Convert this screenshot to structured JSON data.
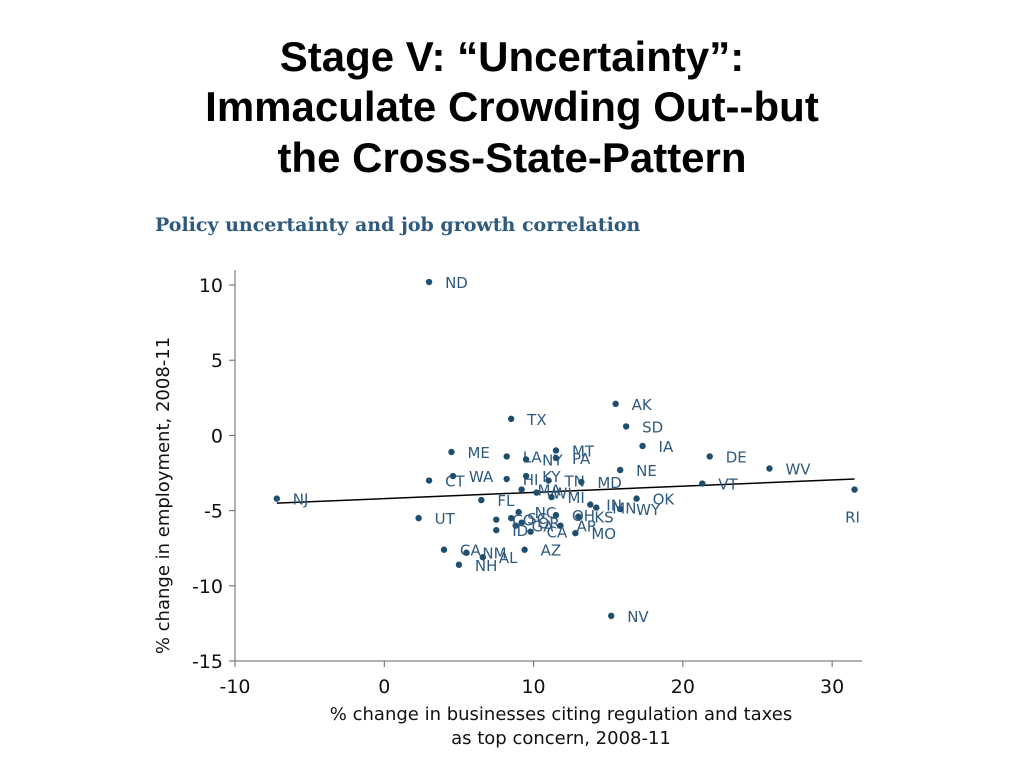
{
  "slide": {
    "title_lines": [
      "Stage V: “Uncertainty”:",
      "Immaculate Crowding Out--but",
      "the Cross-State-Pattern"
    ]
  },
  "chart_data": {
    "type": "scatter",
    "title": "Policy uncertainty and job growth correlation",
    "xlabel_lines": [
      "% change in businesses citing regulation and taxes",
      "as top concern, 2008-11"
    ],
    "ylabel": "% change in employment, 2008-11",
    "xlim": [
      -10,
      32
    ],
    "ylim": [
      -15,
      11
    ],
    "xticks": [
      -10,
      0,
      10,
      20,
      30
    ],
    "yticks": [
      10,
      5,
      0,
      -5,
      -10,
      -15
    ],
    "grid": false,
    "colors": {
      "point": "#1f4e6e",
      "label": "#2e5a80",
      "axis": "#666666",
      "trend": "#000000"
    },
    "trendline": {
      "x": [
        -7.2,
        31.5
      ],
      "y": [
        -4.5,
        -2.9
      ]
    },
    "points": [
      {
        "label": "ND",
        "x": 3.0,
        "y": 10.2
      },
      {
        "label": "AK",
        "x": 15.5,
        "y": 2.1
      },
      {
        "label": "TX",
        "x": 8.5,
        "y": 1.1
      },
      {
        "label": "SD",
        "x": 16.2,
        "y": 0.6
      },
      {
        "label": "IA",
        "x": 17.3,
        "y": -0.7
      },
      {
        "label": "DE",
        "x": 21.8,
        "y": -1.4
      },
      {
        "label": "WV",
        "x": 25.8,
        "y": -2.2
      },
      {
        "label": "VT",
        "x": 21.3,
        "y": -3.2
      },
      {
        "label": "RI",
        "x": 31.5,
        "y": -3.6
      },
      {
        "label": "NJ",
        "x": -7.2,
        "y": -4.2
      },
      {
        "label": "ME",
        "x": 4.5,
        "y": -1.1
      },
      {
        "label": "LA",
        "x": 8.2,
        "y": -1.4
      },
      {
        "label": "NY",
        "x": 9.5,
        "y": -1.6
      },
      {
        "label": "MT",
        "x": 11.5,
        "y": -1.0
      },
      {
        "label": "PA",
        "x": 11.5,
        "y": -1.5
      },
      {
        "label": "NE",
        "x": 15.8,
        "y": -2.3
      },
      {
        "label": "CT",
        "x": 3.0,
        "y": -3.0
      },
      {
        "label": "WA",
        "x": 4.6,
        "y": -2.7
      },
      {
        "label": "HI",
        "x": 8.2,
        "y": -2.9
      },
      {
        "label": "KY",
        "x": 9.5,
        "y": -2.7
      },
      {
        "label": "TN",
        "x": 11.0,
        "y": -3.0
      },
      {
        "label": "MD",
        "x": 13.2,
        "y": -3.1
      },
      {
        "label": "MA",
        "x": 9.2,
        "y": -3.6
      },
      {
        "label": "WI",
        "x": 10.2,
        "y": -3.8
      },
      {
        "label": "MI",
        "x": 11.2,
        "y": -4.1
      },
      {
        "label": "FL",
        "x": 6.5,
        "y": -4.3
      },
      {
        "label": "OK",
        "x": 16.9,
        "y": -4.2
      },
      {
        "label": "MN",
        "x": 14.2,
        "y": -4.8
      },
      {
        "label": "WY",
        "x": 15.8,
        "y": -4.9
      },
      {
        "label": "IN",
        "x": 13.8,
        "y": -4.6
      },
      {
        "label": "UT",
        "x": 2.3,
        "y": -5.5
      },
      {
        "label": "NC",
        "x": 9.0,
        "y": -5.1
      },
      {
        "label": "SC",
        "x": 8.5,
        "y": -5.5
      },
      {
        "label": "OH",
        "x": 11.5,
        "y": -5.3
      },
      {
        "label": "KS",
        "x": 13.0,
        "y": -5.4
      },
      {
        "label": "GA",
        "x": 8.8,
        "y": -6.0
      },
      {
        "label": "OR",
        "x": 9.2,
        "y": -5.8
      },
      {
        "label": "AR",
        "x": 11.8,
        "y": -6.0
      },
      {
        "label": "CO",
        "x": 7.5,
        "y": -5.6
      },
      {
        "label": "ID",
        "x": 7.5,
        "y": -6.3
      },
      {
        "label": "CA",
        "x": 9.8,
        "y": -6.4
      },
      {
        "label": "MO",
        "x": 12.8,
        "y": -6.5
      },
      {
        "label": "AZ",
        "x": 9.4,
        "y": -7.6
      },
      {
        "label": "CA",
        "x": 4.0,
        "y": -7.6
      },
      {
        "label": "NM",
        "x": 5.5,
        "y": -7.8
      },
      {
        "label": "AL",
        "x": 6.6,
        "y": -8.1
      },
      {
        "label": "NH",
        "x": 5.0,
        "y": -8.6
      },
      {
        "label": "NV",
        "x": 15.2,
        "y": -12.0
      }
    ]
  }
}
